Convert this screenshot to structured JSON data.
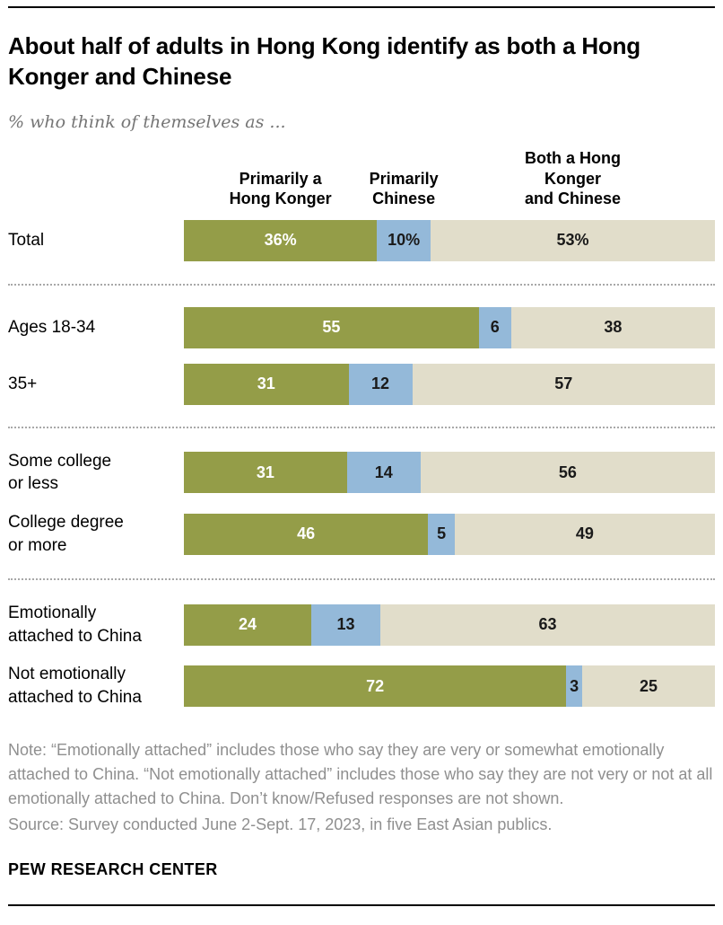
{
  "header": {
    "title": "About half of adults in Hong Kong identify as both a Hong Konger and Chinese",
    "subtitle": "% who think of themselves as ..."
  },
  "chart_data": {
    "type": "bar",
    "stacked": true,
    "orientation": "horizontal",
    "value_unit": "%",
    "series": [
      {
        "key": "primarily-hong-konger",
        "label": "Primarily a\nHong Konger",
        "color": "#949d48",
        "text_color": "#ffffff"
      },
      {
        "key": "primarily-chinese",
        "label": "Primarily\nChinese",
        "color": "#94b9d9",
        "text_color": "#1a1a1a"
      },
      {
        "key": "both-hong-konger-and-chinese",
        "label": "Both a Hong Konger\nand Chinese",
        "color": "#e1ddca",
        "text_color": "#1a1a1a"
      }
    ],
    "groups": [
      {
        "rows": [
          {
            "label": "Total",
            "values": [
              36,
              10,
              53
            ],
            "display": [
              "36%",
              "10%",
              "53%"
            ]
          }
        ]
      },
      {
        "rows": [
          {
            "label": "Ages 18-34",
            "values": [
              55,
              6,
              38
            ],
            "display": [
              "55",
              "6",
              "38"
            ]
          },
          {
            "label": "35+",
            "values": [
              31,
              12,
              57
            ],
            "display": [
              "31",
              "12",
              "57"
            ]
          }
        ]
      },
      {
        "rows": [
          {
            "label": "Some college\nor less",
            "values": [
              31,
              14,
              56
            ],
            "display": [
              "31",
              "14",
              "56"
            ]
          },
          {
            "label": "College degree\nor more",
            "values": [
              46,
              5,
              49
            ],
            "display": [
              "46",
              "5",
              "49"
            ]
          }
        ]
      },
      {
        "rows": [
          {
            "label": "Emotionally\nattached to China",
            "values": [
              24,
              13,
              63
            ],
            "display": [
              "24",
              "13",
              "63"
            ]
          },
          {
            "label": "Not emotionally\nattached to China",
            "values": [
              72,
              3,
              25
            ],
            "display": [
              "72",
              "3",
              "25"
            ]
          }
        ]
      }
    ]
  },
  "footer": {
    "note": "Note: “Emotionally attached” includes those who say they are very or somewhat emotionally attached to China. “Not emotionally attached” includes those who say they are not very or not at all emotionally attached to China. Don’t know/Refused responses are not shown.",
    "source": "Source: Survey conducted June 2-Sept. 17, 2023, in five East Asian publics.",
    "brand": "PEW RESEARCH CENTER"
  }
}
